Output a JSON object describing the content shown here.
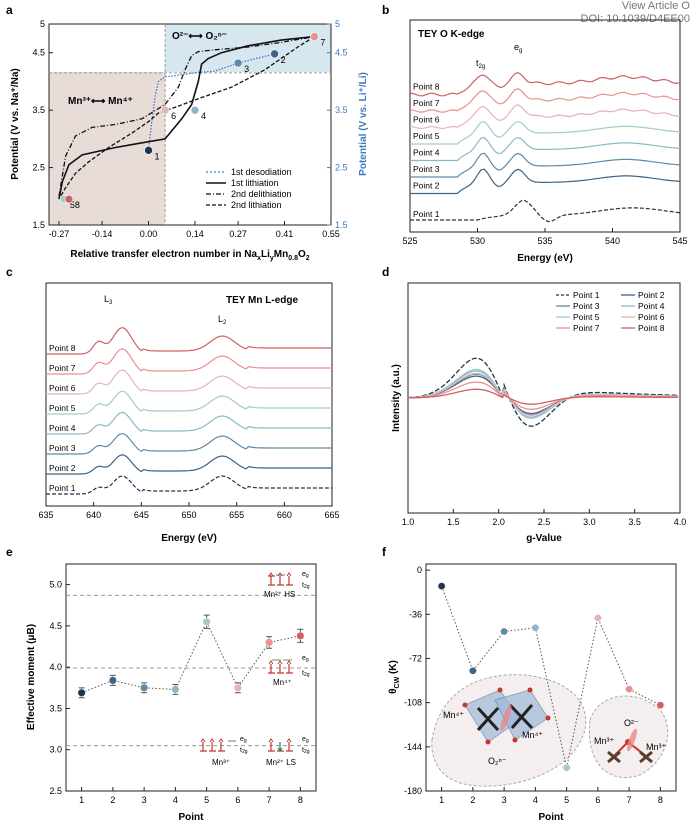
{
  "overlay": {
    "view_article": "View Article O",
    "doi": "DOI: 10.1039/D4EE00"
  },
  "palette": {
    "points": [
      "#1f3550",
      "#3e6384",
      "#5d8aa8",
      "#8eb7c5",
      "#a5c9cc",
      "#e2b6b6",
      "#e9918e",
      "#d06065"
    ],
    "accent_blue": "#3e7bc0",
    "shade_red": "#e8dcd8",
    "shade_blue": "#d6e7ef"
  },
  "panels": {
    "a": {
      "label": "a",
      "xlabel": "Relative transfer electron number in Na",
      "xlabel_sub1": "x",
      "xlabel_mid1": "Li",
      "xlabel_sub2": "y",
      "xlabel_mid2": "Mn",
      "xlabel_sub3": "0.8",
      "xlabel_mid3": "O",
      "xlabel_sub4": "2",
      "ylabel_left": "Potential (V vs. Na⁺/Na)",
      "ylabel_right": "Potential (V vs. Li⁺/Li)",
      "region_left_text": "Mn³⁺⟷ Mn⁴⁺",
      "region_right_text": "O²⁻⟷ O₂ⁿ⁻",
      "legend": [
        "1st desodiation",
        "1st lithiation",
        "2nd delithiation",
        "2nd lithiation"
      ]
    },
    "b": {
      "label": "b",
      "title": "TEY O K-edge",
      "xlabel": "Energy (eV)",
      "peak_t2g": "t",
      "peak_t2g_sub": "2g",
      "peak_eg": "e",
      "peak_eg_sub": "g"
    },
    "c": {
      "label": "c",
      "title": "TEY Mn L-edge",
      "xlabel": "Energy (eV)",
      "peak_l3": "L",
      "peak_l3_sub": "3",
      "peak_l2": "L",
      "peak_l2_sub": "2"
    },
    "d": {
      "label": "d",
      "xlabel": "g-Value",
      "ylabel": "Intensity (a.u.)",
      "legend": [
        "Point 1",
        "Point 2",
        "Point 3",
        "Point 4",
        "Point 5",
        "Point 6",
        "Point 7",
        "Point 8"
      ]
    },
    "e": {
      "label": "e",
      "xlabel": "Point",
      "ylabel": "Effective moment (μB)",
      "ann_hs": "Mn²⁺ HS",
      "ann_mn4": "Mn⁴⁺",
      "ann_mn3": "Mn³⁺",
      "ann_ls": "Mn²⁺ LS",
      "eg": "e",
      "t2g": "t",
      "eg_sub": "g",
      "t2g_sub": "2g"
    },
    "f": {
      "label": "f",
      "xlabel": "Point",
      "ylabel": "θ",
      "ylabel_sub": "CW",
      "ylabel_unit": " (K)",
      "inset1": {
        "mn_left": "Mn⁴⁺",
        "mn_right": "Mn⁴⁺",
        "o": "O₂ⁿ⁻"
      },
      "inset2": {
        "o": "O²⁻",
        "mn_left": "Mn³⁺",
        "mn_right": "Mn³⁺"
      }
    }
  },
  "chart_data": [
    {
      "panel": "a",
      "type": "line",
      "xlim": [
        -0.3,
        0.55
      ],
      "ylim": [
        1.5,
        5.0
      ],
      "y2lim": [
        1.5,
        5.0
      ],
      "xticks": [
        "-0.27",
        "-0.14",
        "0.00",
        "0.14",
        "0.27",
        "0.41",
        "0.55"
      ],
      "xtick_values": [
        -0.27,
        -0.14,
        0.0,
        0.14,
        0.27,
        0.41,
        0.55
      ],
      "yticks": [
        "1.5",
        "2.5",
        "3.5",
        "4.5",
        "5"
      ],
      "ytick_values": [
        1.5,
        2.5,
        3.5,
        4.5,
        5.0
      ],
      "y2ticks": [
        "1.5",
        "2.5",
        "3.5",
        "4.5",
        "5"
      ],
      "series": [
        {
          "name": "1st desodiation",
          "style": "dotted",
          "color": "#3e7bc0",
          "x": [
            0.0,
            0.01,
            0.02,
            0.03,
            0.05,
            0.08,
            0.1,
            0.14,
            0.2,
            0.27,
            0.38
          ],
          "y": [
            2.8,
            3.3,
            3.75,
            4.0,
            4.08,
            4.1,
            4.12,
            4.15,
            4.18,
            4.32,
            4.48
          ]
        },
        {
          "name": "1st lithiation",
          "style": "solid",
          "color": "#111111",
          "x": [
            0.5,
            0.4,
            0.3,
            0.22,
            0.18,
            0.16,
            0.15,
            0.13,
            0.1,
            0.05,
            0.0,
            -0.1,
            -0.2,
            -0.24,
            -0.26,
            -0.27
          ],
          "y": [
            4.78,
            4.72,
            4.62,
            4.5,
            4.4,
            4.3,
            4.0,
            3.6,
            3.35,
            3.0,
            2.95,
            2.85,
            2.72,
            2.55,
            2.25,
            1.95
          ]
        },
        {
          "name": "2nd delithiation",
          "style": "dashdot",
          "color": "#111111",
          "x": [
            -0.27,
            -0.25,
            -0.22,
            -0.17,
            -0.1,
            -0.02,
            0.05,
            0.09,
            0.11,
            0.13,
            0.15,
            0.2,
            0.3,
            0.4,
            0.5
          ],
          "y": [
            2.0,
            2.7,
            3.05,
            3.2,
            3.25,
            3.35,
            3.6,
            3.9,
            4.2,
            4.45,
            4.52,
            4.55,
            4.6,
            4.68,
            4.78
          ]
        },
        {
          "name": "2nd lithiation",
          "style": "dashed",
          "color": "#111111",
          "x": [
            0.5,
            0.45,
            0.35,
            0.25,
            0.15,
            0.08,
            0.03,
            0.0,
            -0.05,
            -0.12,
            -0.18,
            -0.22,
            -0.25,
            -0.27
          ],
          "y": [
            4.78,
            4.6,
            4.2,
            3.9,
            3.7,
            3.55,
            3.45,
            3.3,
            3.1,
            2.85,
            2.6,
            2.4,
            2.15,
            1.95
          ]
        }
      ],
      "points": [
        {
          "label": "1",
          "x": 0.0,
          "y": 2.8
        },
        {
          "label": "2",
          "x": 0.38,
          "y": 4.48
        },
        {
          "label": "3",
          "x": 0.27,
          "y": 4.32
        },
        {
          "label": "4",
          "x": 0.14,
          "y": 3.5
        },
        {
          "label": "5",
          "x": -0.255,
          "y": 1.95
        },
        {
          "label": "6",
          "x": 0.05,
          "y": 3.5
        },
        {
          "label": "7",
          "x": 0.5,
          "y": 4.78
        },
        {
          "label": "8",
          "x": -0.24,
          "y": 1.95
        }
      ],
      "vline_x": 0.05,
      "hline_y": 4.15
    },
    {
      "panel": "b",
      "type": "line",
      "xlim": [
        525,
        545
      ],
      "xticks": [
        "525",
        "530",
        "535",
        "540",
        "545"
      ],
      "xtick_values": [
        525,
        530,
        535,
        540,
        545
      ],
      "series": [
        {
          "name": "Point 1",
          "offset": 0.0
        },
        {
          "name": "Point 2",
          "offset": 1.0
        },
        {
          "name": "Point 3",
          "offset": 1.75
        },
        {
          "name": "Point 4",
          "offset": 2.5
        },
        {
          "name": "Point 5",
          "offset": 3.25
        },
        {
          "name": "Point 6",
          "offset": 4.0
        },
        {
          "name": "Point 7",
          "offset": 4.75
        },
        {
          "name": "Point 8",
          "offset": 5.5
        }
      ]
    },
    {
      "panel": "c",
      "type": "line",
      "xlim": [
        635,
        665
      ],
      "xticks": [
        "635",
        "640",
        "645",
        "650",
        "655",
        "660",
        "665"
      ],
      "xtick_values": [
        635,
        640,
        645,
        650,
        655,
        660,
        665
      ],
      "series": [
        {
          "name": "Point 1",
          "offset": 0.0
        },
        {
          "name": "Point 2",
          "offset": 1.0
        },
        {
          "name": "Point 3",
          "offset": 2.0
        },
        {
          "name": "Point 4",
          "offset": 3.0
        },
        {
          "name": "Point 5",
          "offset": 4.0
        },
        {
          "name": "Point 6",
          "offset": 5.0
        },
        {
          "name": "Point 7",
          "offset": 6.0
        },
        {
          "name": "Point 8",
          "offset": 7.0
        }
      ]
    },
    {
      "panel": "d",
      "type": "line",
      "xlim": [
        1.0,
        4.0
      ],
      "xticks": [
        "1.0",
        "1.5",
        "2.0",
        "2.5",
        "3.0",
        "3.5",
        "4.0"
      ],
      "xtick_values": [
        1.0,
        1.5,
        2.0,
        2.5,
        3.0,
        3.5,
        4.0
      ],
      "series": [
        {
          "name": "Point 1",
          "amp": 1.0
        },
        {
          "name": "Point 2",
          "amp": 0.55
        },
        {
          "name": "Point 3",
          "amp": 0.6
        },
        {
          "name": "Point 4",
          "amp": 0.68
        },
        {
          "name": "Point 5",
          "amp": 0.72
        },
        {
          "name": "Point 6",
          "amp": 0.62
        },
        {
          "name": "Point 7",
          "amp": 0.4
        },
        {
          "name": "Point 8",
          "amp": 0.22
        }
      ]
    },
    {
      "panel": "e",
      "type": "scatter",
      "xlim": [
        0.5,
        8.5
      ],
      "ylim": [
        2.5,
        5.25
      ],
      "xticks": [
        "1",
        "2",
        "3",
        "4",
        "5",
        "6",
        "7",
        "8"
      ],
      "xtick_values": [
        1,
        2,
        3,
        4,
        5,
        6,
        7,
        8
      ],
      "yticks": [
        "2.5",
        "3.0",
        "3.5",
        "4.0",
        "4.5",
        "5.0"
      ],
      "ytick_values": [
        2.5,
        3.0,
        3.5,
        4.0,
        4.5,
        5.0
      ],
      "x": [
        1,
        2,
        3,
        4,
        5,
        6,
        7,
        8
      ],
      "y": [
        3.69,
        3.84,
        3.75,
        3.73,
        4.55,
        3.75,
        4.3,
        4.38
      ],
      "err": [
        0.06,
        0.06,
        0.06,
        0.06,
        0.08,
        0.06,
        0.07,
        0.08
      ],
      "reference_lines": [
        4.87,
        3.99,
        3.05
      ]
    },
    {
      "panel": "f",
      "type": "scatter",
      "xlim": [
        0.5,
        8.5
      ],
      "ylim": [
        -180,
        5
      ],
      "xticks": [
        "1",
        "2",
        "3",
        "4",
        "5",
        "6",
        "7",
        "8"
      ],
      "xtick_values": [
        1,
        2,
        3,
        4,
        5,
        6,
        7,
        8
      ],
      "yticks": [
        "0",
        "-36",
        "-72",
        "-108",
        "-144",
        "-180"
      ],
      "ytick_values": [
        0,
        -36,
        -72,
        -108,
        -144,
        -180
      ],
      "x": [
        1,
        2,
        3,
        4,
        5,
        6,
        7,
        8
      ],
      "y": [
        -13,
        -82,
        -50,
        -47,
        -161,
        -39,
        -97,
        -110
      ]
    }
  ]
}
